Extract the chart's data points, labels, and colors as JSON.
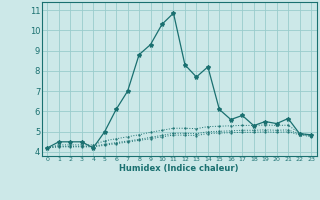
{
  "xlabel": "Humidex (Indice chaleur)",
  "bg_color": "#cce8e8",
  "grid_color": "#99cccc",
  "line_color": "#1a7070",
  "xlim": [
    -0.5,
    23.5
  ],
  "ylim": [
    3.8,
    11.4
  ],
  "yticks": [
    4,
    5,
    6,
    7,
    8,
    9,
    10,
    11
  ],
  "xticks": [
    0,
    1,
    2,
    3,
    4,
    5,
    6,
    7,
    8,
    9,
    10,
    11,
    12,
    13,
    14,
    15,
    16,
    17,
    18,
    19,
    20,
    21,
    22,
    23
  ],
  "series_main": [
    4.2,
    4.5,
    4.5,
    4.5,
    4.2,
    5.0,
    6.1,
    7.0,
    8.8,
    9.3,
    10.3,
    10.85,
    8.3,
    7.7,
    8.2,
    6.1,
    5.6,
    5.8,
    5.3,
    5.5,
    5.4,
    5.65,
    4.9,
    4.85
  ],
  "series_flat": [
    [
      4.2,
      4.35,
      4.35,
      4.35,
      4.35,
      4.55,
      4.65,
      4.75,
      4.85,
      4.97,
      5.07,
      5.17,
      5.17,
      5.15,
      5.25,
      5.27,
      5.29,
      5.31,
      5.31,
      5.33,
      5.31,
      5.32,
      4.92,
      4.82
    ],
    [
      4.2,
      4.28,
      4.28,
      4.28,
      4.28,
      4.38,
      4.46,
      4.54,
      4.62,
      4.72,
      4.82,
      4.92,
      4.92,
      4.9,
      5.0,
      5.02,
      5.04,
      5.07,
      5.07,
      5.09,
      5.07,
      5.09,
      4.88,
      4.78
    ],
    [
      4.2,
      4.25,
      4.25,
      4.25,
      4.25,
      4.33,
      4.41,
      4.49,
      4.57,
      4.65,
      4.75,
      4.83,
      4.83,
      4.81,
      4.91,
      4.93,
      4.95,
      4.97,
      4.97,
      4.99,
      4.97,
      4.99,
      4.85,
      4.75
    ]
  ]
}
